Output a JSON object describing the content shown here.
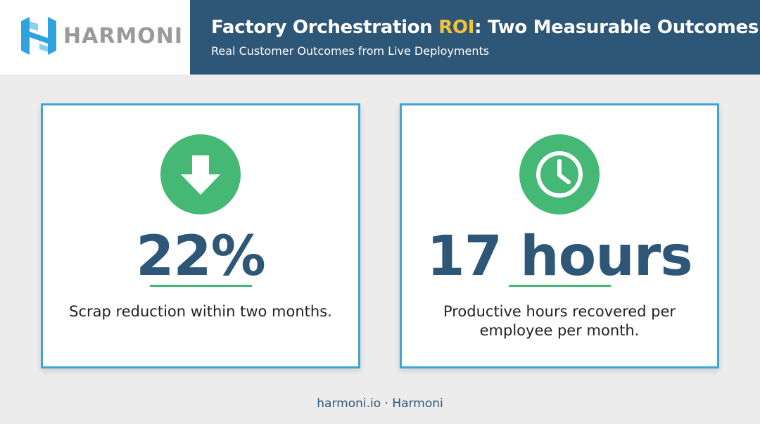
{
  "logo": {
    "text": "HARMONI",
    "icon": "harmoni-h-logo-icon",
    "color": "#2fa3e0"
  },
  "header": {
    "title_prefix": "Factory Orchestration ",
    "title_highlight": "ROI",
    "title_suffix": ": Two Measurable Outcomes",
    "subtitle": "Real Customer Outcomes from Live Deployments",
    "background": "#2d5677",
    "highlight_color": "#f5c33b"
  },
  "cards": [
    {
      "icon": "arrow-down-icon",
      "metric": "22%",
      "description": "Scrap reduction within two months."
    },
    {
      "icon": "clock-icon",
      "metric": "17 hours",
      "description": "Productive hours recovered per employee per month."
    }
  ],
  "colors": {
    "accent_green": "#46b875",
    "card_border": "#3fa4d8",
    "metric_text": "#2d5677"
  },
  "footer": {
    "text": "harmoni.io · Harmoni"
  }
}
